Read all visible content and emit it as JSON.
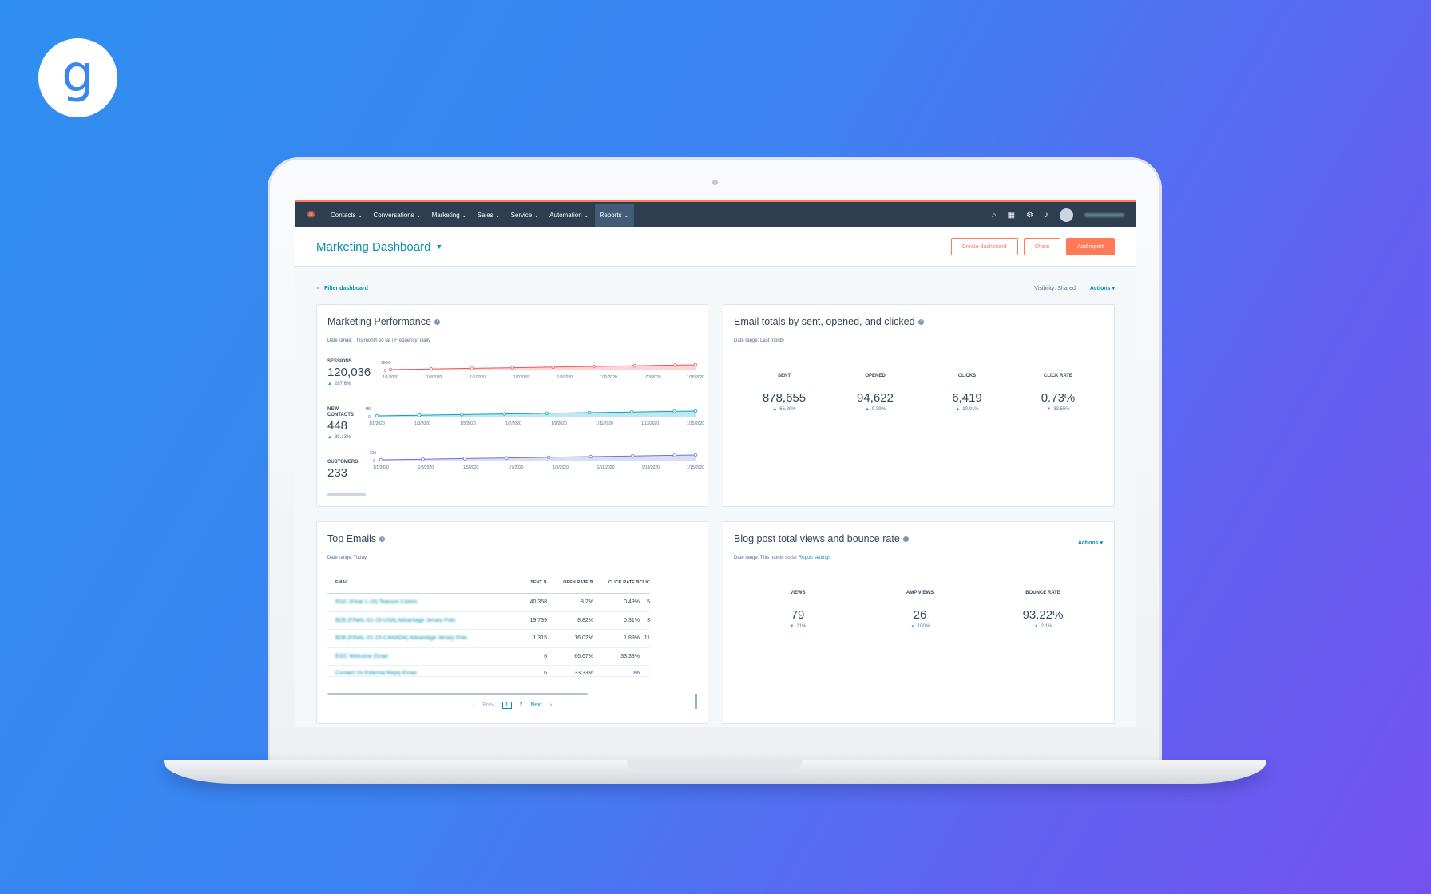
{
  "brand": {
    "logo_letter": "g"
  },
  "nav": {
    "items": [
      "Contacts ⌄",
      "Conversations ⌄",
      "Marketing ⌄",
      "Sales ⌄",
      "Service ⌄",
      "Automation ⌄",
      "Reports ⌄"
    ],
    "active_index": 6,
    "icons": [
      "search-icon",
      "marketplace-icon",
      "gear-icon",
      "bell-icon"
    ]
  },
  "header": {
    "title": "Marketing Dashboard",
    "create_dashboard": "Create dashboard",
    "share": "Share",
    "add_report": "Add report"
  },
  "filterbar": {
    "filter": "Filter dashboard",
    "visibility": "Visibility:  Shared",
    "actions": "Actions ▾"
  },
  "marketing_performance": {
    "title": "Marketing Performance",
    "meta": "Date range: This month so far  |  Frequency: Daily",
    "dates": [
      "1/1/2020",
      "1/3/2020",
      "1/5/2020",
      "1/7/2020",
      "1/9/2020",
      "1/11/2020",
      "1/13/2020",
      "1/15/2020"
    ],
    "metrics": [
      {
        "label": "SESSIONS",
        "value": "120,036",
        "delta": "287.6%",
        "ymax": "160K",
        "ymin": "0",
        "color": "#f2545b"
      },
      {
        "label": "NEW CONTACTS",
        "value": "448",
        "delta": "39.13%",
        "ymax": "480",
        "ymin": "0",
        "color": "#00a4bd"
      },
      {
        "label": "CUSTOMERS",
        "value": "233",
        "delta": "",
        "ymax": "320",
        "ymin": "0",
        "color": "#6a78d1"
      }
    ]
  },
  "email_totals": {
    "title": "Email totals by sent, opened, and clicked",
    "meta": "Date range: Last month",
    "kpis": [
      {
        "label": "SENT",
        "value": "878,655",
        "delta": "65.29%",
        "dir": "up"
      },
      {
        "label": "OPENED",
        "value": "94,622",
        "delta": "9.39%",
        "dir": "up"
      },
      {
        "label": "CLICKS",
        "value": "6,419",
        "delta": "10.01%",
        "dir": "up"
      },
      {
        "label": "CLICK RATE",
        "value": "0.73%",
        "delta": "33.55%",
        "dir": "down"
      }
    ]
  },
  "top_emails": {
    "title": "Top Emails",
    "meta": "Date range: Today",
    "columns": [
      "EMAIL",
      "SENT ⇅",
      "OPEN RATE ⇅",
      "CLICK RATE ⇅",
      "CLIC THROU RA"
    ],
    "rows": [
      {
        "email": "EGC (Final 1-19) Tearson Comm",
        "sent": "40,358",
        "open": "8.2%",
        "click": "0.49%",
        "ct": "5"
      },
      {
        "email": "B2B (FINAL-01-15-USA) Advantage Jersey Polo",
        "sent": "19,739",
        "open": "8.82%",
        "click": "0.31%",
        "ct": "3"
      },
      {
        "email": "B2B (FINAL-01-15-CANADA) Advantage Jersey Polo",
        "sent": "1,315",
        "open": "16.02%",
        "click": "1.89%",
        "ct": "11"
      },
      {
        "email": "EGC Welcome Email",
        "sent": "6",
        "open": "66.67%",
        "click": "33.33%",
        "ct": ""
      },
      {
        "email": "Contact Us External Reply Email",
        "sent": "6",
        "open": "33.33%",
        "click": "0%",
        "ct": ""
      }
    ],
    "pager": {
      "prev": "Prev",
      "page1": "1",
      "page2": "2",
      "next": "Next"
    }
  },
  "blog_post": {
    "title": "Blog post total views and bounce rate",
    "meta": "Date range: This month so far",
    "meta_link": "Report settings",
    "actions": "Actions ▾",
    "kpis": [
      {
        "label": "VIEWS",
        "value": "79",
        "delta": "21%",
        "dir": "down"
      },
      {
        "label": "AMP VIEWS",
        "value": "26",
        "delta": "100%",
        "dir": "up"
      },
      {
        "label": "BOUNCE RATE",
        "value": "93.22%",
        "delta": "2.1%",
        "dir": "up"
      }
    ]
  }
}
